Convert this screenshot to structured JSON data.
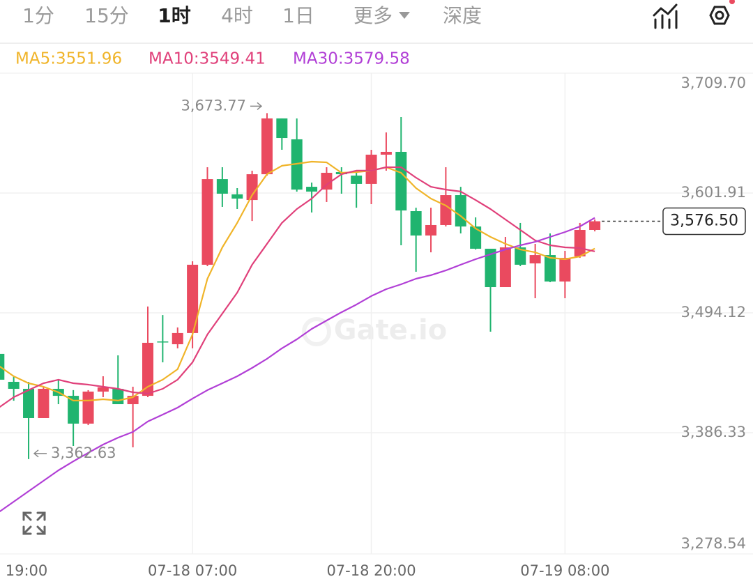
{
  "header": {
    "tabs": [
      "1分",
      "15分",
      "1时",
      "4时",
      "1日",
      "更多",
      "深度"
    ],
    "selected_tab": 2
  },
  "chart_data": {
    "type": "candlestick",
    "watermark": "Gate.io",
    "categories": [
      null,
      null,
      "19:00",
      null,
      null,
      null,
      null,
      null,
      null,
      null,
      null,
      null,
      null,
      "07-18 07:00",
      null,
      null,
      null,
      null,
      null,
      null,
      null,
      null,
      null,
      null,
      null,
      "07-18 20:00",
      null,
      null,
      null,
      null,
      null,
      null,
      null,
      null,
      null,
      null,
      null,
      null,
      "07-19 08:00",
      null,
      null
    ],
    "up_color": "#ea4a5f",
    "down_color": "#20b46f",
    "open": [
      3457.2,
      3432.1,
      3425.8,
      3399.5,
      3425.8,
      3419.5,
      3394.5,
      3423.3,
      3425.8,
      3412.0,
      3419.5,
      3468.4,
      3465.9,
      3476.0,
      3537.4,
      3614.4,
      3600.7,
      3595.6,
      3618.8,
      3669.0,
      3650.2,
      3607.5,
      3605.0,
      3620.7,
      3617.6,
      3610.1,
      3636.4,
      3638.9,
      3585.6,
      3563.7,
      3573.1,
      3600.0,
      3571.8,
      3551.8,
      3517.3,
      3553.0,
      3538.6,
      3546.1,
      3522.3,
      3544.9,
      3568.7
    ],
    "high": [
      3457.2,
      3437.1,
      3432.1,
      3427.7,
      3434.0,
      3424.6,
      3424.6,
      3437.1,
      3455.9,
      3427.7,
      3499.8,
      3492.2,
      3481.0,
      3540.5,
      3625.1,
      3625.1,
      3606.3,
      3622.0,
      3673.77,
      3669.0,
      3669.0,
      3611.3,
      3625.1,
      3625.1,
      3622.0,
      3640.8,
      3656.4,
      3670.2,
      3588.7,
      3588.7,
      3625.1,
      3607.5,
      3580.0,
      3551.8,
      3562.4,
      3575.0,
      3556.2,
      3565.6,
      3549.9,
      3575.0,
      3578.1
    ],
    "low": [
      3434.0,
      3415.1,
      3362.63,
      3399.5,
      3412.0,
      3374.4,
      3393.2,
      3418.3,
      3412.0,
      3373.2,
      3418.3,
      3449.6,
      3462.2,
      3462.2,
      3536.1,
      3589.4,
      3587.5,
      3576.8,
      3617.6,
      3640.8,
      3603.2,
      3584.4,
      3593.8,
      3601.3,
      3588.7,
      3591.9,
      3622.0,
      3554.9,
      3531.1,
      3548.6,
      3571.8,
      3565.6,
      3551.1,
      3477.2,
      3517.3,
      3536.1,
      3507.3,
      3521.7,
      3507.3,
      3543.6,
      3567.4
    ],
    "close": [
      3434.0,
      3425.8,
      3399.5,
      3425.8,
      3419.5,
      3394.5,
      3423.3,
      3427.1,
      3412.0,
      3419.5,
      3467.2,
      3467.8,
      3476.0,
      3537.4,
      3614.4,
      3601.3,
      3596.9,
      3618.8,
      3669.0,
      3651.4,
      3605.0,
      3603.2,
      3620.1,
      3618.8,
      3610.1,
      3636.4,
      3638.9,
      3586.2,
      3563.7,
      3573.1,
      3600.0,
      3571.8,
      3551.8,
      3517.3,
      3553.0,
      3537.4,
      3546.1,
      3522.3,
      3543.6,
      3568.7,
      3576.5
    ],
    "series": [
      {
        "name": "MA5",
        "legend_label": "MA5:3551.96",
        "color": "#f0b429",
        "values": [
          3446.5,
          3437.1,
          3430.8,
          3427.7,
          3422.7,
          3415.2,
          3415.2,
          3416.4,
          3415.2,
          3418.3,
          3427.7,
          3434.0,
          3443.4,
          3474.7,
          3524.8,
          3553.0,
          3575.0,
          3600.0,
          3618.8,
          3626.4,
          3628.2,
          3630.1,
          3629.5,
          3620.1,
          3620.7,
          3622.0,
          3625.1,
          3620.1,
          3606.3,
          3596.9,
          3590.6,
          3581.2,
          3570.0,
          3562.4,
          3556.2,
          3551.1,
          3548.6,
          3543.6,
          3542.4,
          3544.9,
          3551.96
        ]
      },
      {
        "name": "MA10",
        "legend_label": "MA10:3549.41",
        "color": "#e0407a",
        "values": [
          3408.9,
          3418.3,
          3424.6,
          3430.8,
          3434.0,
          3430.8,
          3429.6,
          3427.7,
          3425.8,
          3422.7,
          3421.4,
          3425.8,
          3434.0,
          3449.6,
          3474.7,
          3493.5,
          3512.3,
          3537.4,
          3556.2,
          3575.0,
          3587.5,
          3596.9,
          3609.4,
          3618.8,
          3622.0,
          3622.0,
          3625.1,
          3625.1,
          3615.7,
          3607.5,
          3605.0,
          3603.2,
          3595.6,
          3587.5,
          3578.1,
          3568.7,
          3559.3,
          3554.9,
          3553.0,
          3552.4,
          3549.41
        ]
      },
      {
        "name": "MA30",
        "legend_label": "MA30:3579.58",
        "color": "#b13fd6",
        "values": [
          3314.9,
          3324.3,
          3333.7,
          3343.1,
          3352.5,
          3360.6,
          3368.2,
          3375.7,
          3381.9,
          3387.0,
          3396.4,
          3402.6,
          3408.9,
          3417.0,
          3424.6,
          3430.8,
          3437.1,
          3444.6,
          3452.8,
          3462.2,
          3470.3,
          3479.7,
          3487.2,
          3494.7,
          3501.6,
          3509.2,
          3515.4,
          3519.8,
          3524.8,
          3528.0,
          3532.3,
          3537.4,
          3542.4,
          3546.8,
          3551.1,
          3554.9,
          3558.0,
          3562.4,
          3566.8,
          3571.8,
          3579.58
        ]
      }
    ],
    "ylim": [
      3278.54,
      3709.7
    ],
    "yticks": [
      {
        "value": 3709.7,
        "label": "3,709.70"
      },
      {
        "value": 3601.91,
        "label": "3,601.91"
      },
      {
        "value": 3494.12,
        "label": "3,494.12"
      },
      {
        "value": 3386.33,
        "label": "3,386.33"
      },
      {
        "value": 3278.54,
        "label": "3,278.54"
      }
    ],
    "grid": true,
    "high_label": "3,673.77",
    "low_label": "3,362.63",
    "last_price_label": "3,576.50"
  }
}
